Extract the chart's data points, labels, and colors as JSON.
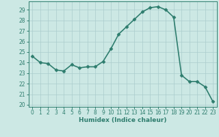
{
  "x": [
    0,
    1,
    2,
    3,
    4,
    5,
    6,
    7,
    8,
    9,
    10,
    11,
    12,
    13,
    14,
    15,
    16,
    17,
    18,
    19,
    20,
    21,
    22,
    23
  ],
  "y": [
    24.6,
    24.0,
    23.9,
    23.3,
    23.2,
    23.8,
    23.5,
    23.6,
    23.6,
    24.1,
    25.3,
    26.7,
    27.4,
    28.1,
    28.8,
    29.2,
    29.3,
    29.0,
    28.3,
    22.8,
    22.2,
    22.2,
    21.7,
    20.3
  ],
  "title": "",
  "xlabel": "Humidex (Indice chaleur)",
  "line_color": "#2e7d6e",
  "marker_color": "#2e7d6e",
  "bg_color": "#cce8e4",
  "grid_color": "#aacccc",
  "text_color": "#2e7d6e",
  "ylim": [
    19.8,
    29.8
  ],
  "xlim": [
    -0.5,
    23.5
  ],
  "yticks": [
    20,
    21,
    22,
    23,
    24,
    25,
    26,
    27,
    28,
    29
  ],
  "xticks": [
    0,
    1,
    2,
    3,
    4,
    5,
    6,
    7,
    8,
    9,
    10,
    11,
    12,
    13,
    14,
    15,
    16,
    17,
    18,
    19,
    20,
    21,
    22,
    23
  ],
  "tick_fontsize": 5.5,
  "xlabel_fontsize": 6.5,
  "linewidth": 1.2,
  "markersize": 2.5
}
